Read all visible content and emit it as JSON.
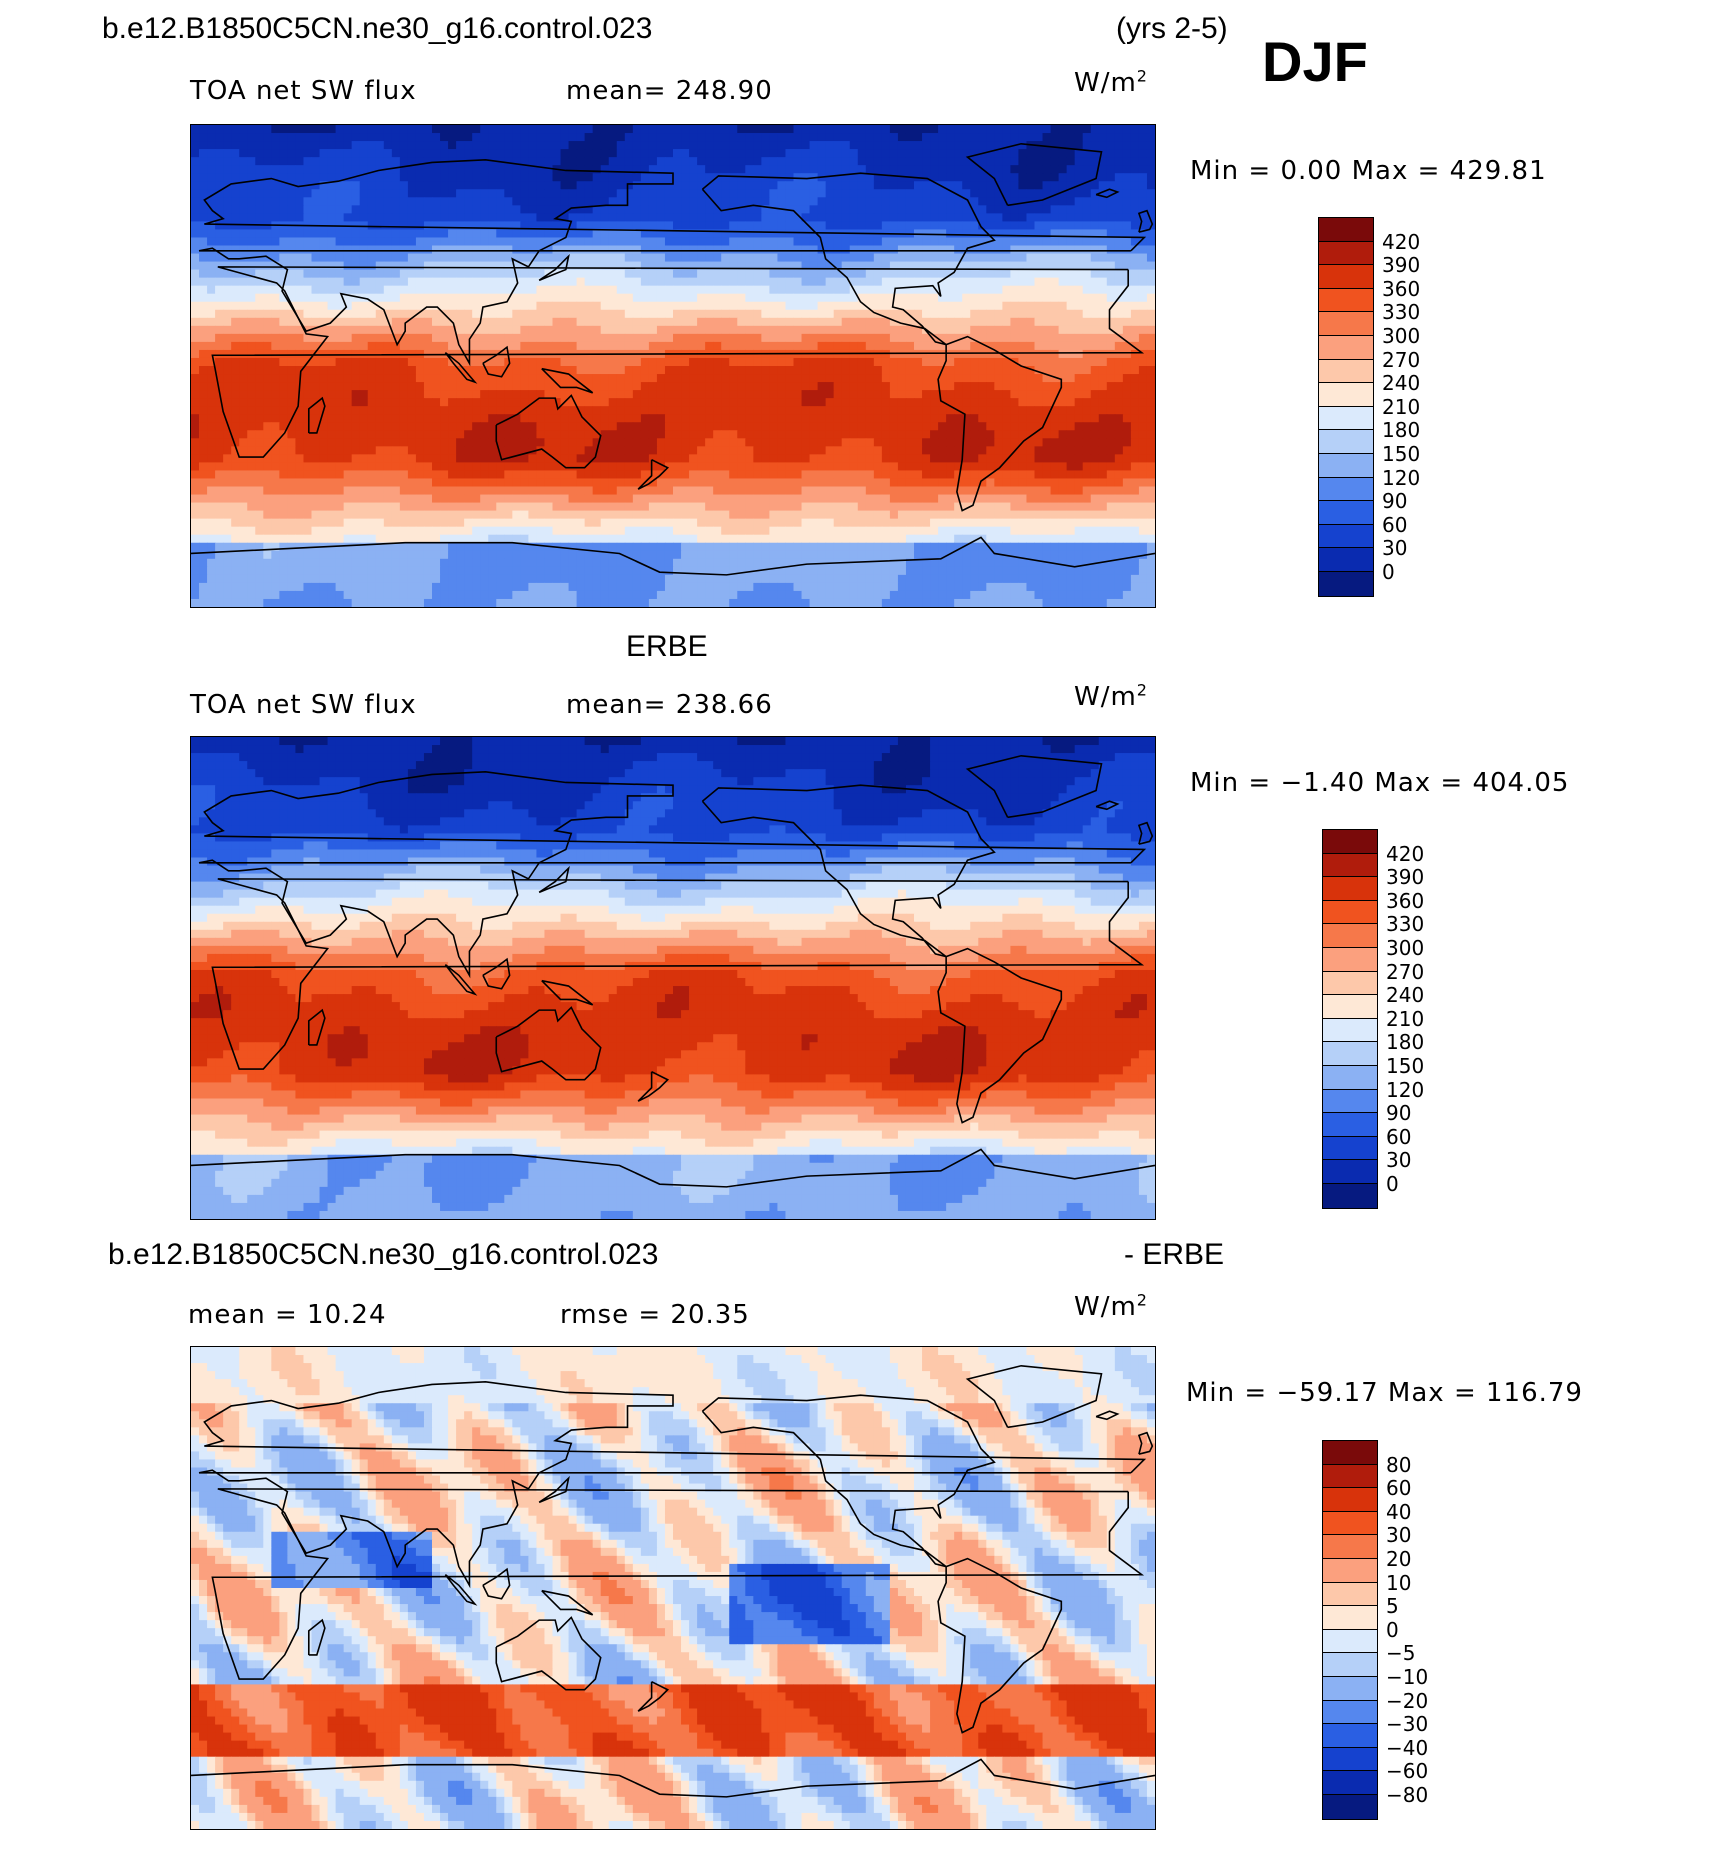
{
  "season": "DJF",
  "years": "(yrs 2-5)",
  "panels": [
    {
      "title": "b.e12.B1850C5CN.ne30_g16.control.023",
      "variable": "TOA net SW flux",
      "stat1": "mean=  248.90",
      "stat2": "",
      "units": "W/m",
      "units_exp": "2",
      "minmax": "Min =    0.00  Max =  429.81",
      "kind": "field",
      "colorbar": {
        "labels": [
          "420",
          "390",
          "360",
          "330",
          "300",
          "270",
          "240",
          "210",
          "180",
          "150",
          "120",
          "90",
          "60",
          "30",
          "0"
        ]
      }
    },
    {
      "title": "ERBE",
      "variable": "TOA net SW flux",
      "stat1": "mean=  238.66",
      "stat2": "",
      "units": "W/m",
      "units_exp": "2",
      "minmax": "Min =   −1.40  Max =  404.05",
      "kind": "field",
      "colorbar": {
        "labels": [
          "420",
          "390",
          "360",
          "330",
          "300",
          "270",
          "240",
          "210",
          "180",
          "150",
          "120",
          "90",
          "60",
          "30",
          "0"
        ]
      }
    },
    {
      "title": "b.e12.B1850C5CN.ne30_g16.control.023",
      "title_suffix": "- ERBE",
      "variable": "mean =   10.24",
      "stat1": "rmse =   20.35",
      "stat2": "",
      "units": "W/m",
      "units_exp": "2",
      "minmax": "Min = −59.17  Max =  116.79",
      "kind": "diff",
      "colorbar": {
        "labels": [
          "80",
          "60",
          "40",
          "30",
          "20",
          "10",
          "5",
          "0",
          "−5",
          "−10",
          "−20",
          "−30",
          "−40",
          "−60",
          "−80"
        ]
      }
    }
  ],
  "colors": {
    "field_scale": [
      "#7a0a0a",
      "#b01c0c",
      "#d8330b",
      "#f0531f",
      "#f6784a",
      "#fba07e",
      "#fdc8aa",
      "#fee8d6",
      "#dbeafc",
      "#b5d0f8",
      "#8bb1f3",
      "#5587ee",
      "#2a5fe3",
      "#1542cf",
      "#0a2bb0",
      "#061a80"
    ],
    "diff_scale": [
      "#7a0a0a",
      "#b01c0c",
      "#d8330b",
      "#f0531f",
      "#f6784a",
      "#fba07e",
      "#fdc8aa",
      "#fee8d6",
      "#dbeafc",
      "#b5d0f8",
      "#8bb1f3",
      "#5587ee",
      "#2a5fe3",
      "#1542cf",
      "#0a2bb0",
      "#061a80"
    ],
    "coast": "#000000"
  }
}
